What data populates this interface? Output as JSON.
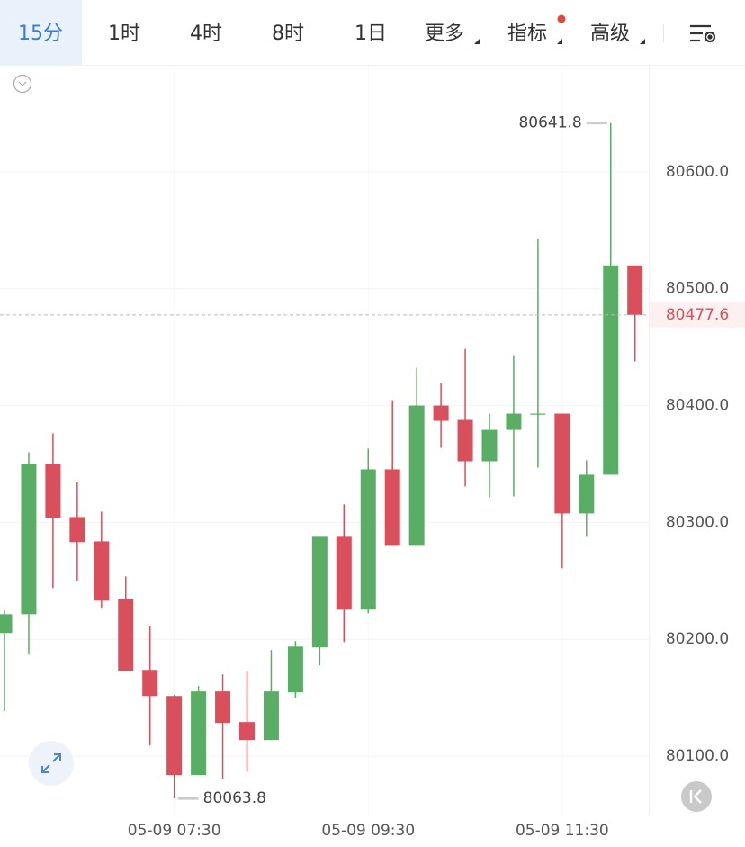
{
  "toolbar": {
    "tabs": [
      "15分",
      "1时",
      "4时",
      "8时",
      "1日",
      "更多",
      "指标",
      "高级"
    ],
    "active": 0
  },
  "chart_data": {
    "type": "candlestick",
    "categories": [
      null,
      null,
      null,
      null,
      null,
      null,
      null,
      "05-09 07:30",
      null,
      null,
      null,
      null,
      null,
      null,
      null,
      "05-09 09:30",
      null,
      null,
      null,
      null,
      null,
      null,
      null,
      "05-09 11:30",
      null,
      null,
      null
    ],
    "open": [
      80205.4,
      80221.5,
      80350,
      80304.6,
      80283.8,
      80234.6,
      80173.8,
      80151.5,
      80083.8,
      80155.4,
      80129.2,
      80113.8,
      80154.6,
      80193.1,
      80287.7,
      80225.4,
      80345.4,
      80280,
      80400,
      80387.7,
      80352.3,
      80379.2,
      80392.3,
      80393.1,
      80307.7,
      80340.8,
      80520
    ],
    "high": [
      80224.6,
      80360,
      80376.2,
      80334.6,
      80309.2,
      80253.8,
      80211.5,
      80152.3,
      80160,
      80170,
      80173.1,
      80190.8,
      80198.5,
      80287.7,
      80315.4,
      80363.1,
      80404.6,
      80432.3,
      80419.2,
      80448.5,
      80393.1,
      80443.1,
      80542.3,
      80393.1,
      80353.1,
      80641.8,
      80520
    ],
    "low": [
      80138.5,
      80186.9,
      80243.8,
      80250,
      80226.2,
      80173.1,
      80109.2,
      80063.8,
      80083.8,
      80080,
      80086.9,
      80113.8,
      80150,
      80177.7,
      80197.7,
      80222.3,
      80280,
      80280,
      80363.8,
      80330.8,
      80321.5,
      80322.3,
      80346.9,
      80260.8,
      80287.7,
      80340.8,
      80437.7
    ],
    "close": [
      80221.5,
      80350,
      80303.8,
      80283.1,
      80233.1,
      80173.1,
      80151.5,
      80083.8,
      80155.4,
      80128.5,
      80113.8,
      80155.4,
      80193.8,
      80287.7,
      80225.4,
      80345.4,
      80280,
      80400,
      80386.9,
      80352.3,
      80379.2,
      80393.1,
      80393.1,
      80307.7,
      80340.8,
      80520,
      80477.6
    ],
    "up_color": "#5aad64",
    "down_color": "#d94f5c",
    "ylim": [
      80050,
      80690.8
    ],
    "yticks": [
      {
        "value": 80100,
        "label": "80100.0"
      },
      {
        "value": 80200,
        "label": "80200.0"
      },
      {
        "value": 80300,
        "label": "80300.0"
      },
      {
        "value": 80400,
        "label": "80400.0"
      },
      {
        "value": 80500,
        "label": "80500.0"
      },
      {
        "value": 80600,
        "label": "80600.0"
      }
    ],
    "grid": true,
    "high_marker": 80641.8,
    "low_marker": 80063.8,
    "last_price": 80477.6
  }
}
